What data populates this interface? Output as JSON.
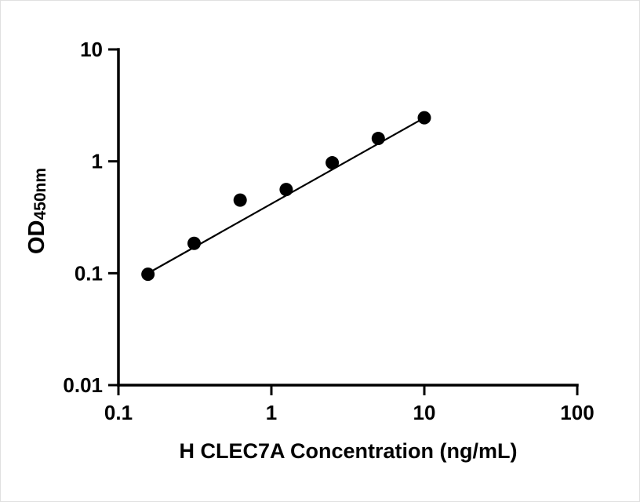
{
  "chart_data": {
    "type": "scatter",
    "title": "",
    "xlabel": "H CLEC7A Concentration (ng/mL)",
    "ylabel_main": "OD",
    "ylabel_sub": "450nm",
    "x_scale": "log",
    "y_scale": "log",
    "xlim": [
      0.1,
      100
    ],
    "ylim": [
      0.01,
      10
    ],
    "grid": "off",
    "legend": "none",
    "x_ticks": [
      0.1,
      1,
      10,
      100
    ],
    "x_tick_labels": [
      "0.1",
      "1",
      "10",
      "100"
    ],
    "y_ticks": [
      0.01,
      0.1,
      1,
      10
    ],
    "y_tick_labels": [
      "0.01",
      "0.1",
      "1",
      "10"
    ],
    "points": [
      {
        "x": 0.156,
        "y": 0.098
      },
      {
        "x": 0.3125,
        "y": 0.185
      },
      {
        "x": 0.625,
        "y": 0.45
      },
      {
        "x": 1.25,
        "y": 0.56
      },
      {
        "x": 2.5,
        "y": 0.97
      },
      {
        "x": 5,
        "y": 1.6
      },
      {
        "x": 10,
        "y": 2.45
      }
    ],
    "trendline": {
      "x_start": 0.15,
      "x_end": 10,
      "a": 0.417,
      "b": 0.769
    },
    "marker_color": "#000000",
    "line_color": "#000000",
    "axis_color": "#000000"
  }
}
